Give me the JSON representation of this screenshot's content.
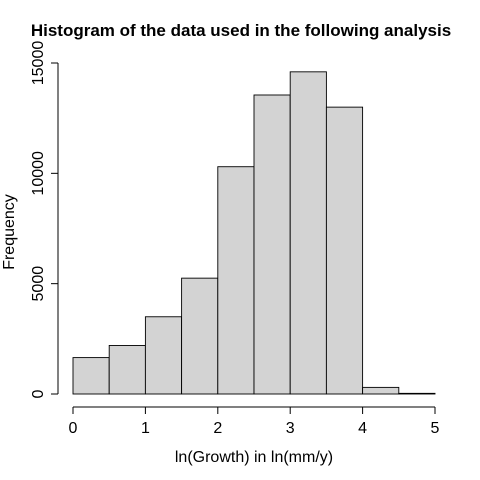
{
  "chart_data": {
    "type": "bar",
    "title": "Histogram of the data used in the following analysis",
    "xlabel": "ln(Growth) in ln(mm/y)",
    "ylabel": "Frequency",
    "bins": [
      {
        "x0": 0.0,
        "x1": 0.5,
        "count": 1650
      },
      {
        "x0": 0.5,
        "x1": 1.0,
        "count": 2200
      },
      {
        "x0": 1.0,
        "x1": 1.5,
        "count": 3500
      },
      {
        "x0": 1.5,
        "x1": 2.0,
        "count": 5250
      },
      {
        "x0": 2.0,
        "x1": 2.5,
        "count": 10300
      },
      {
        "x0": 2.5,
        "x1": 3.0,
        "count": 13550
      },
      {
        "x0": 3.0,
        "x1": 3.5,
        "count": 14600
      },
      {
        "x0": 3.5,
        "x1": 4.0,
        "count": 13000
      },
      {
        "x0": 4.0,
        "x1": 4.5,
        "count": 300
      },
      {
        "x0": 4.5,
        "x1": 5.0,
        "count": 30
      }
    ],
    "xlim": [
      0,
      5
    ],
    "ylim": [
      0,
      15000
    ],
    "x_ticks": [
      0,
      1,
      2,
      3,
      4,
      5
    ],
    "y_ticks": [
      0,
      5000,
      10000,
      15000
    ],
    "x_tick_labels": [
      "0",
      "1",
      "2",
      "3",
      "4",
      "5"
    ],
    "y_tick_labels": [
      "0",
      "5000",
      "10000",
      "15000"
    ],
    "bar_color": "#d3d3d3",
    "edge_color": "#000000",
    "grid": false,
    "legend": "none"
  }
}
